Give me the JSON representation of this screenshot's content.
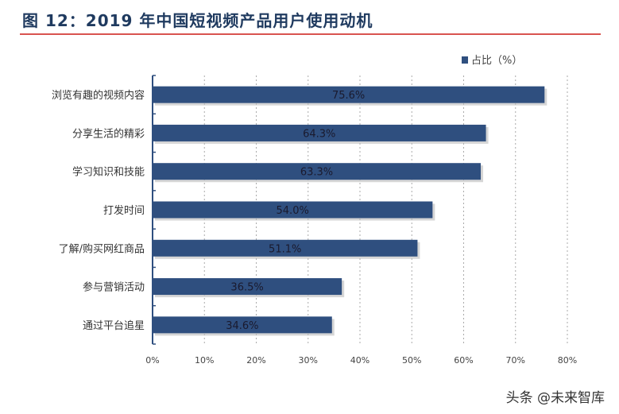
{
  "title": "图 12：2019 年中国短视频产品用户使用动机",
  "watermark": "头条 @未来智库",
  "chart_data": {
    "type": "bar",
    "orientation": "horizontal",
    "title": "图 12：2019 年中国短视频产品用户使用动机",
    "categories": [
      "浏览有趣的视频内容",
      "分享生活的精彩",
      "学习知识和技能",
      "打发时间",
      "了解/购买网红商品",
      "参与营销活动",
      "通过平台追星"
    ],
    "series": [
      {
        "name": "占比（%）",
        "values": [
          75.6,
          64.3,
          63.3,
          54.0,
          51.1,
          36.5,
          34.6
        ],
        "labels": [
          "75.6%",
          "64.3%",
          "63.3%",
          "54.0%",
          "51.1%",
          "36.5%",
          "34.6%"
        ]
      }
    ],
    "xlim": [
      0,
      80
    ],
    "xticks": [
      0,
      10,
      20,
      30,
      40,
      50,
      60,
      70,
      80
    ],
    "xtick_labels": [
      "0%",
      "10%",
      "20%",
      "30%",
      "40%",
      "50%",
      "60%",
      "70%",
      "80%"
    ],
    "grid": "vertical dotted",
    "legend": "top-right",
    "colors": {
      "bar": "#2f4f7f",
      "rule": "#d9534f",
      "title": "#1f3a5f"
    }
  }
}
